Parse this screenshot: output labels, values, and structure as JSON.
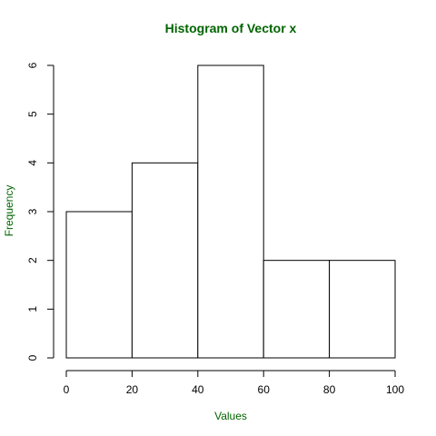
{
  "chart_data": {
    "type": "bar",
    "title": "Histogram of Vector x",
    "xlabel": "Values",
    "ylabel": "Frequency",
    "bins": [
      {
        "from": 0,
        "to": 20,
        "count": 3
      },
      {
        "from": 20,
        "to": 40,
        "count": 4
      },
      {
        "from": 40,
        "to": 60,
        "count": 6
      },
      {
        "from": 60,
        "to": 80,
        "count": 2
      },
      {
        "from": 80,
        "to": 100,
        "count": 2
      }
    ],
    "xlim": [
      0,
      100
    ],
    "ylim": [
      0,
      6
    ],
    "x_ticks": [
      0,
      20,
      40,
      60,
      80,
      100
    ],
    "y_ticks": [
      0,
      1,
      2,
      3,
      4,
      5,
      6
    ],
    "x_tick_labels": [
      "0",
      "20",
      "40",
      "60",
      "80",
      "100"
    ],
    "y_tick_labels": [
      "0",
      "1",
      "2",
      "3",
      "4",
      "5",
      "6"
    ],
    "grid": false,
    "bar_fill": "#ffffff",
    "bar_stroke": "#000000",
    "label_color": "#006400"
  }
}
